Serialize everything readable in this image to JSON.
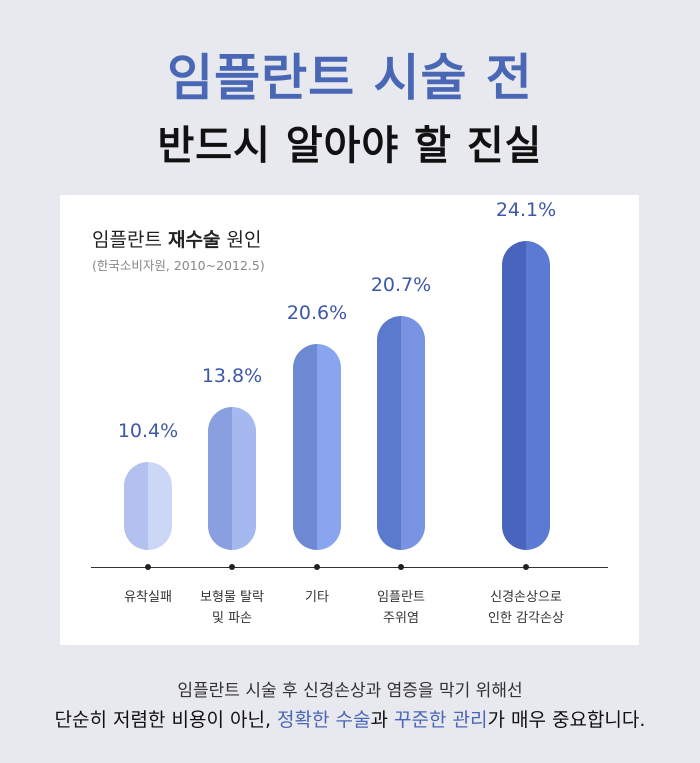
{
  "header": {
    "title": "임플란트 시술 전",
    "subtitle": "반드시 알아야 할 진실"
  },
  "chart": {
    "title_prefix": "임플란트 ",
    "title_bold": "재수술",
    "title_suffix": " 원인",
    "source": "(한국소비자원, 2010~2012.5)"
  },
  "chart_data": {
    "type": "bar",
    "title": "임플란트 재수술 원인",
    "subtitle": "(한국소비자원, 2010~2012.5)",
    "categories": [
      "유착실패",
      "보형물 탈락 및 파손",
      "기타",
      "임플란트 주위염",
      "신경손상으로 인한 감각손상"
    ],
    "values": [
      10.4,
      13.8,
      20.6,
      20.7,
      24.1
    ],
    "value_labels": [
      "10.4%",
      "13.8%",
      "20.6%",
      "20.7%",
      "24.1%"
    ],
    "unit": "%",
    "xlabel": "",
    "ylabel": "",
    "grid": false,
    "legend": false
  },
  "bars": [
    {
      "label_line1": "유착실패",
      "label_line2": "",
      "value_label": "10.4%",
      "color_left": "#b3c1ee",
      "color_right": "#ccd7f8"
    },
    {
      "label_line1": "보형물 탈락",
      "label_line2": "및 파손",
      "value_label": "13.8%",
      "color_left": "#8a9fe0",
      "color_right": "#a6b8f0"
    },
    {
      "label_line1": "기타",
      "label_line2": "",
      "value_label": "20.6%",
      "color_left": "#6e89d4",
      "color_right": "#8aa5ef"
    },
    {
      "label_line1": "임플란트",
      "label_line2": "주위염",
      "value_label": "20.7%",
      "color_left": "#5c7acd",
      "color_right": "#7893e2"
    },
    {
      "label_line1": "신경손상으로",
      "label_line2": "인한 감각손상",
      "value_label": "24.1%",
      "color_left": "#4864bd",
      "color_right": "#5a7ad4"
    }
  ],
  "footer": {
    "line1": "임플란트 시술 후 신경손상과 염증을 막기 위해선",
    "line2_a": "단순히 저렴한 비용이 아닌, ",
    "line2_accent1": "정확한 수술",
    "line2_b": "과 ",
    "line2_accent2": "꾸준한 관리",
    "line2_c": "가 매우 중요합니다."
  },
  "colors": {
    "background": "#e8e9ef",
    "accent": "#4a67b5",
    "value_text": "#3e58a8"
  }
}
